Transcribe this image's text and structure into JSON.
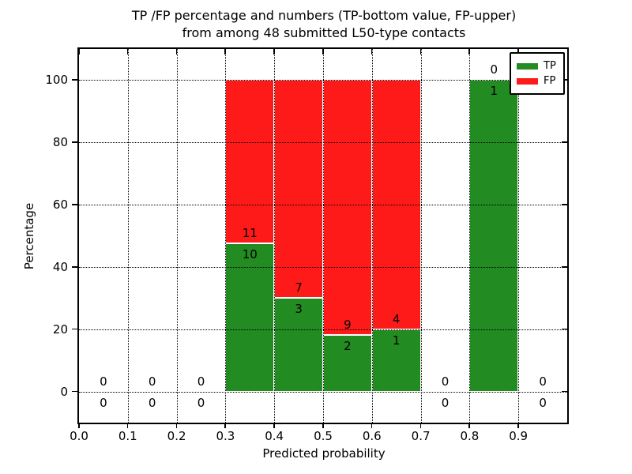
{
  "figure": {
    "title_line1": "TP /FP percentage and numbers (TP-bottom value, FP-upper)",
    "title_line2": "from among 48 submitted L50-type contacts"
  },
  "chart_data": {
    "type": "bar",
    "stacked": true,
    "title": "TP /FP percentage and numbers (TP-bottom value, FP-upper)\nfrom among 48 submitted L50-type contacts",
    "xlabel": "Predicted probability",
    "ylabel": "Percentage",
    "xlim": [
      0.0,
      1.0
    ],
    "ylim": [
      -10,
      110
    ],
    "x_ticks": [
      "0.0",
      "0.1",
      "0.2",
      "0.3",
      "0.4",
      "0.5",
      "0.6",
      "0.7",
      "0.8",
      "0.9"
    ],
    "y_ticks": [
      "0",
      "20",
      "40",
      "60",
      "80",
      "100"
    ],
    "grid": "dotted",
    "total_contacts": 48,
    "colors": {
      "tp": "#228b22",
      "fp": "#ff1a1a"
    },
    "legend": {
      "position": "upper right",
      "entries": [
        {
          "label": "TP",
          "color": "#228b22"
        },
        {
          "label": "FP",
          "color": "#ff1a1a"
        }
      ]
    },
    "bins": [
      {
        "range": [
          0.0,
          0.1
        ],
        "tp_count": 0,
        "fp_count": 0,
        "tp_pct": 0,
        "fp_pct": 0
      },
      {
        "range": [
          0.1,
          0.2
        ],
        "tp_count": 0,
        "fp_count": 0,
        "tp_pct": 0,
        "fp_pct": 0
      },
      {
        "range": [
          0.2,
          0.3
        ],
        "tp_count": 0,
        "fp_count": 0,
        "tp_pct": 0,
        "fp_pct": 0
      },
      {
        "range": [
          0.3,
          0.4
        ],
        "tp_count": 10,
        "fp_count": 11,
        "tp_pct": 47.6,
        "fp_pct": 52.4
      },
      {
        "range": [
          0.4,
          0.5
        ],
        "tp_count": 3,
        "fp_count": 7,
        "tp_pct": 30,
        "fp_pct": 70
      },
      {
        "range": [
          0.5,
          0.6
        ],
        "tp_count": 2,
        "fp_count": 9,
        "tp_pct": 18.2,
        "fp_pct": 81.8
      },
      {
        "range": [
          0.6,
          0.7
        ],
        "tp_count": 1,
        "fp_count": 4,
        "tp_pct": 20,
        "fp_pct": 80
      },
      {
        "range": [
          0.7,
          0.8
        ],
        "tp_count": 0,
        "fp_count": 0,
        "tp_pct": 0,
        "fp_pct": 0
      },
      {
        "range": [
          0.8,
          0.9
        ],
        "tp_count": 1,
        "fp_count": 0,
        "tp_pct": 100,
        "fp_pct": 0
      },
      {
        "range": [
          0.9,
          1.0
        ],
        "tp_count": 0,
        "fp_count": 0,
        "tp_pct": 0,
        "fp_pct": 0
      }
    ]
  }
}
